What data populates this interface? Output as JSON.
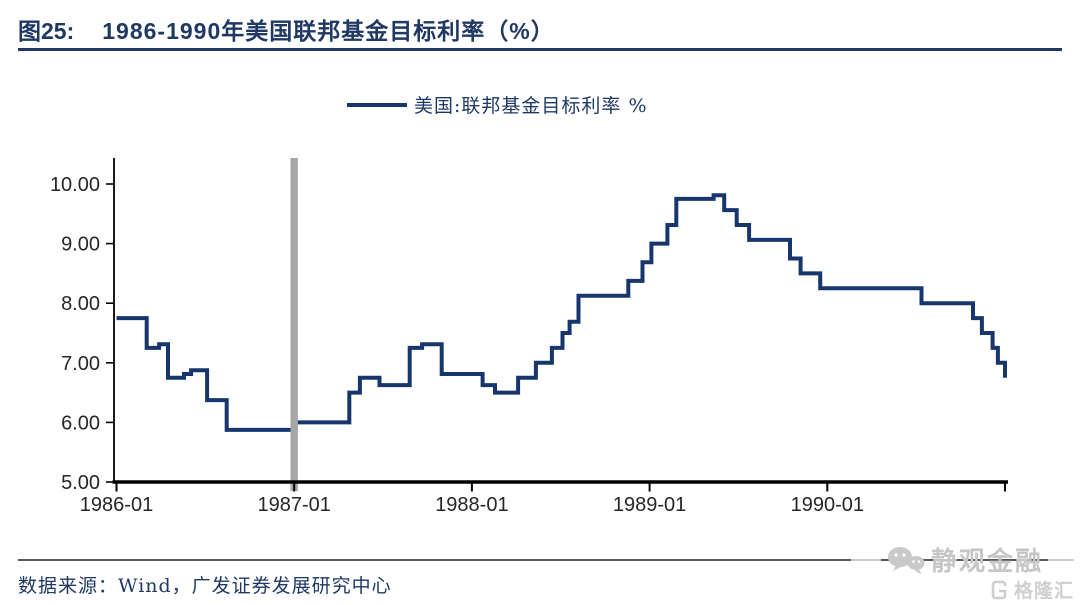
{
  "header": {
    "fig_label": "图25:",
    "title": "1986-1990年美国联邦基金目标利率（%）"
  },
  "legend": {
    "label": "美国:联邦基金目标利率 %"
  },
  "footer": {
    "source": "数据来源：Wind，广发证券发展研究中心"
  },
  "watermark": {
    "wechat_name": "静观金融",
    "platform": "格隆汇"
  },
  "colors": {
    "line": "#17366d",
    "title_navy": "#1f3864",
    "band_gray": "#a6a6a6",
    "axis_black": "#000000",
    "tick_label": "#262626",
    "watermark_gray": "#c9c9c9"
  },
  "chart_data": {
    "type": "line",
    "subtype": "step",
    "title": "1986-1990年美国联邦基金目标利率（%）",
    "series_name": "美国:联邦基金目标利率 %",
    "xlabel": "",
    "ylabel": "",
    "grid": false,
    "legend_position": "top-center",
    "ylim": [
      5.0,
      10.45
    ],
    "xlim": [
      1986.0,
      1991.02
    ],
    "y_ticks": [
      {
        "v": 5,
        "label": "5.00"
      },
      {
        "v": 6,
        "label": "6.00"
      },
      {
        "v": 7,
        "label": "7.00"
      },
      {
        "v": 8,
        "label": "8.00"
      },
      {
        "v": 9,
        "label": "9.00"
      },
      {
        "v": 10,
        "label": "10.00"
      }
    ],
    "x_ticks": [
      {
        "x": 1986.0,
        "label": "1986-01"
      },
      {
        "x": 1987.0,
        "label": "1987-01"
      },
      {
        "x": 1988.0,
        "label": "1988-01"
      },
      {
        "x": 1989.0,
        "label": "1989-01"
      },
      {
        "x": 1990.0,
        "label": "1990-01"
      },
      {
        "x": 1991.0,
        "label": ""
      }
    ],
    "highlight_band_x": 1987.0,
    "step_points": [
      [
        1986.0,
        7.75
      ],
      [
        1986.17,
        7.25
      ],
      [
        1986.24,
        7.3125
      ],
      [
        1986.29,
        6.75
      ],
      [
        1986.38,
        6.8125
      ],
      [
        1986.42,
        6.875
      ],
      [
        1986.51,
        6.375
      ],
      [
        1986.62,
        5.875
      ],
      [
        1987.0,
        6.0
      ],
      [
        1987.31,
        6.5
      ],
      [
        1987.37,
        6.75
      ],
      [
        1987.48,
        6.625
      ],
      [
        1987.65,
        7.25
      ],
      [
        1987.72,
        7.3125
      ],
      [
        1987.83,
        6.8125
      ],
      [
        1988.06,
        6.625
      ],
      [
        1988.13,
        6.5
      ],
      [
        1988.26,
        6.75
      ],
      [
        1988.36,
        7.0
      ],
      [
        1988.45,
        7.25
      ],
      [
        1988.51,
        7.5
      ],
      [
        1988.55,
        7.6875
      ],
      [
        1988.6,
        8.125
      ],
      [
        1988.88,
        8.375
      ],
      [
        1988.96,
        8.6875
      ],
      [
        1989.01,
        9.0
      ],
      [
        1989.1,
        9.3125
      ],
      [
        1989.15,
        9.75
      ],
      [
        1989.36,
        9.8125
      ],
      [
        1989.42,
        9.5625
      ],
      [
        1989.49,
        9.3125
      ],
      [
        1989.56,
        9.0625
      ],
      [
        1989.79,
        8.75
      ],
      [
        1989.85,
        8.5
      ],
      [
        1989.96,
        8.25
      ],
      [
        1990.53,
        8.0
      ],
      [
        1990.82,
        7.75
      ],
      [
        1990.87,
        7.5
      ],
      [
        1990.93,
        7.25
      ],
      [
        1990.96,
        7.0
      ],
      [
        1991.0,
        6.75
      ]
    ]
  }
}
